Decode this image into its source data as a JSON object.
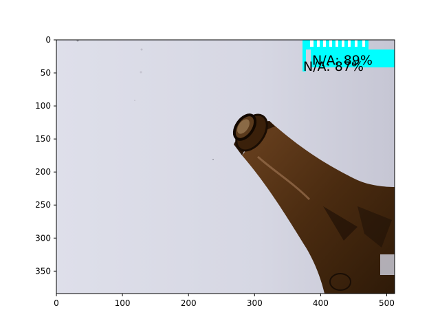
{
  "chart_data": {
    "type": "image",
    "title": "",
    "xlabel": "",
    "ylabel": "",
    "xlim": [
      0,
      512
    ],
    "ylim": [
      384,
      0
    ],
    "x_ticks": [
      "0",
      "100",
      "200",
      "300",
      "400",
      "500"
    ],
    "y_ticks": [
      "0",
      "50",
      "100",
      "150",
      "200",
      "250",
      "300",
      "350"
    ],
    "image_subject": "brown glass bottle on white background",
    "detection_labels": [
      {
        "text": "N/A: 89%",
        "box_color": "#00ffff"
      },
      {
        "text": "N/A: 87%",
        "box_color": "#00ffff"
      }
    ]
  },
  "colors": {
    "background": "#ffffff",
    "photo_bg": "#dcdde8",
    "bottle_glass": "#4a2b10",
    "label_box": "#00ffff"
  }
}
